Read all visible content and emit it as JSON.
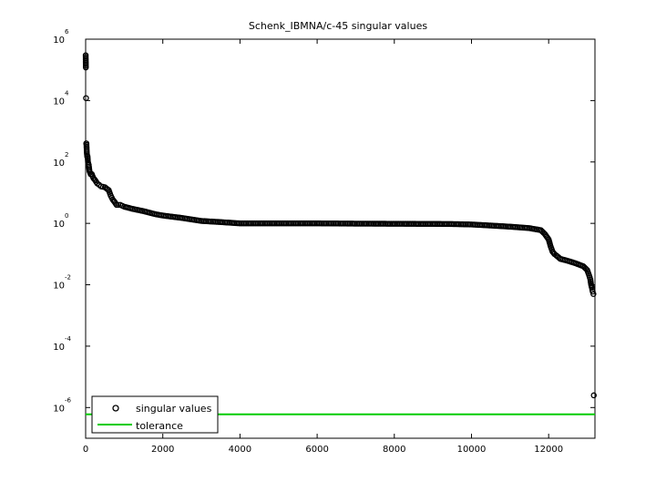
{
  "chart_data": {
    "type": "scatter",
    "title": "Schenk_IBMNA/c-45 singular values",
    "xlabel": "",
    "ylabel": "",
    "y_scale": "log",
    "xlim": [
      0,
      13200
    ],
    "ylim": [
      1e-07,
      1000000.0
    ],
    "grid": false,
    "legend_position": "bottom-left",
    "x_ticks": [
      0,
      2000,
      4000,
      6000,
      8000,
      10000,
      12000
    ],
    "x_tick_labels": [
      "0",
      "2000",
      "4000",
      "6000",
      "8000",
      "10000",
      "12000"
    ],
    "y_ticks": [
      {
        "base": "10",
        "exp": "-6",
        "value": 1e-06
      },
      {
        "base": "10",
        "exp": "-4",
        "value": 0.0001
      },
      {
        "base": "10",
        "exp": "-2",
        "value": 0.01
      },
      {
        "base": "10",
        "exp": "0",
        "value": 1
      },
      {
        "base": "10",
        "exp": "2",
        "value": 100
      },
      {
        "base": "10",
        "exp": "4",
        "value": 10000
      },
      {
        "base": "10",
        "exp": "6",
        "value": 1000000
      }
    ],
    "series": [
      {
        "name": "singular values",
        "marker": "circle",
        "color": "#000000",
        "x": [
          1,
          5,
          10,
          15,
          20,
          30,
          40,
          50,
          60,
          80,
          100,
          130,
          160,
          200,
          250,
          300,
          350,
          400,
          500,
          600,
          650,
          700,
          750,
          800,
          900,
          1000,
          1200,
          1500,
          1800,
          2000,
          2500,
          3000,
          3500,
          4000,
          5000,
          6000,
          7000,
          8000,
          9000,
          9500,
          10000,
          10500,
          11000,
          11500,
          11800,
          11900,
          12000,
          12050,
          12100,
          12150,
          12200,
          12300,
          12500,
          12700,
          12900,
          13000,
          13050,
          13080,
          13100,
          13120,
          13140,
          13160,
          13170
        ],
        "y": [
          300000,
          120000,
          12000,
          400,
          400,
          200,
          150,
          150,
          100,
          80,
          50,
          40,
          40,
          30,
          25,
          20,
          18,
          16,
          15,
          12,
          8,
          6,
          5,
          4,
          4,
          3.5,
          3,
          2.5,
          2,
          1.8,
          1.5,
          1.2,
          1.1,
          1.0,
          1.0,
          1.0,
          0.98,
          0.97,
          0.96,
          0.95,
          0.92,
          0.85,
          0.78,
          0.7,
          0.6,
          0.45,
          0.3,
          0.18,
          0.12,
          0.1,
          0.09,
          0.07,
          0.06,
          0.05,
          0.04,
          0.03,
          0.02,
          0.015,
          0.01,
          0.008,
          0.006,
          0.005,
          2.5e-06
        ]
      },
      {
        "name": "tolerance",
        "type": "line",
        "color": "#00cc00",
        "x": [
          0,
          13200
        ],
        "y": [
          6e-07,
          6e-07
        ]
      }
    ]
  }
}
